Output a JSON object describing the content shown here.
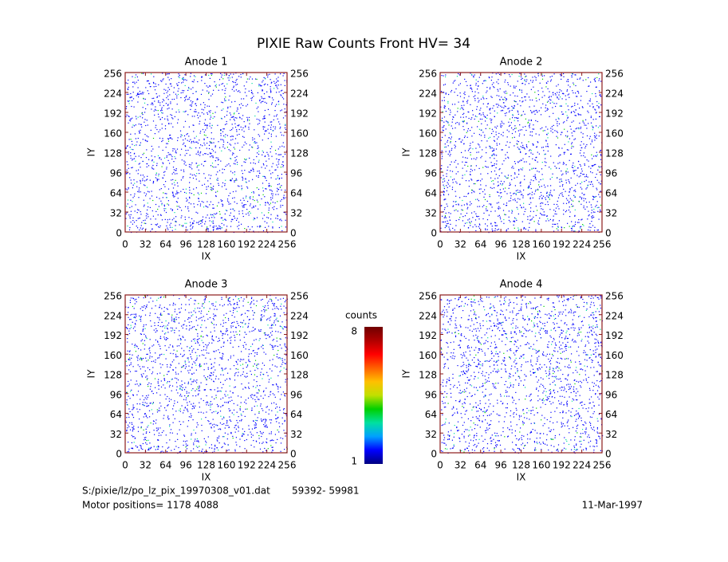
{
  "title": "PIXIE Raw Counts Front HV= 34",
  "chart_data": [
    {
      "type": "heatmap",
      "title": "Anode 1",
      "x_label": "IX",
      "y_label": "IY",
      "xlim": [
        0,
        256
      ],
      "ylim": [
        0,
        256
      ],
      "xticks": [
        0,
        32,
        64,
        96,
        128,
        160,
        192,
        224,
        256
      ],
      "yticks": [
        0,
        32,
        64,
        96,
        128,
        160,
        192,
        224,
        256
      ]
    },
    {
      "type": "heatmap",
      "title": "Anode 2",
      "x_label": "IX",
      "y_label": "IY",
      "xlim": [
        0,
        256
      ],
      "ylim": [
        0,
        256
      ],
      "xticks": [
        0,
        32,
        64,
        96,
        128,
        160,
        192,
        224,
        256
      ],
      "yticks": [
        0,
        32,
        64,
        96,
        128,
        160,
        192,
        224,
        256
      ]
    },
    {
      "type": "heatmap",
      "title": "Anode 3",
      "x_label": "IX",
      "y_label": "IY",
      "xlim": [
        0,
        256
      ],
      "ylim": [
        0,
        256
      ],
      "xticks": [
        0,
        32,
        64,
        96,
        128,
        160,
        192,
        224,
        256
      ],
      "yticks": [
        0,
        32,
        64,
        96,
        128,
        160,
        192,
        224,
        256
      ]
    },
    {
      "type": "heatmap",
      "title": "Anode 4",
      "x_label": "IX",
      "y_label": "IY",
      "xlim": [
        0,
        256
      ],
      "ylim": [
        0,
        256
      ],
      "xticks": [
        0,
        32,
        64,
        96,
        128,
        160,
        192,
        224,
        256
      ],
      "yticks": [
        0,
        32,
        64,
        96,
        128,
        160,
        192,
        224,
        256
      ]
    }
  ],
  "colorbar": {
    "label": "counts",
    "lim": [
      1,
      8
    ],
    "ticks": [
      1,
      8
    ],
    "colors": [
      "#000080",
      "#0000ff",
      "#00a0ff",
      "#00e0a0",
      "#00d000",
      "#c0e000",
      "#ffc000",
      "#ff6000",
      "#ff0000",
      "#b00000",
      "#700000"
    ]
  },
  "footer": {
    "file": "S:/pixie/lz/po_lz_pix_19970308_v01.dat",
    "range": "59392- 59981",
    "motor": "Motor positions= 1178 4088",
    "date": "11-Mar-1997"
  }
}
